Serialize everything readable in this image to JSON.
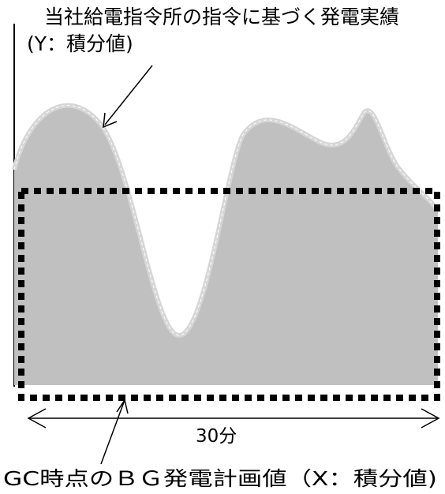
{
  "diagram": {
    "actual_label_line1": "当社給電指令所の指令に基づく発電実績",
    "actual_label_line2": "(Y：積分値)",
    "duration_label": "30分",
    "plan_label": "GC時点のＢＧ発電計画値（X：積分値)",
    "colors": {
      "fill": "#c0c0c0",
      "curve_outline": "#d0d0d0",
      "curve_highlight": "#ffffff",
      "dotted_rect": "#000000",
      "lines": "#000000"
    }
  }
}
